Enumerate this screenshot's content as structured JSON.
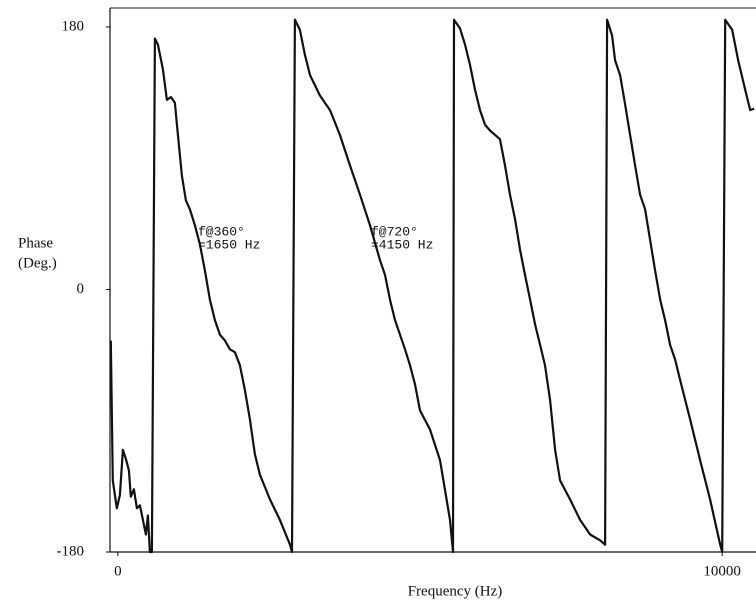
{
  "chart_data": {
    "type": "line",
    "xlabel": "Frequency (Hz)",
    "ylabel": [
      "Phase",
      "(Deg.)"
    ],
    "annotations": [
      [
        "f@360°",
        "=1650 Hz"
      ],
      [
        "f@720°",
        "=4150 Hz"
      ]
    ],
    "x": [
      -116,
      -83,
      -17,
      33,
      83,
      132,
      182,
      215,
      265,
      315,
      364,
      414,
      464,
      497,
      530,
      563,
      613,
      662,
      745,
      811,
      877,
      944,
      993,
      1060,
      1126,
      1192,
      1275,
      1358,
      1440,
      1523,
      1606,
      1689,
      1772,
      1854,
      1937,
      2020,
      2103,
      2185,
      2268,
      2351,
      2517,
      2682,
      2848,
      2881,
      2930,
      3013,
      3096,
      3179,
      3344,
      3510,
      3675,
      3841,
      4007,
      4172,
      4338,
      4420,
      4503,
      4586,
      4669,
      4752,
      4834,
      4917,
      5000,
      5165,
      5331,
      5496,
      5546,
      5563,
      5662,
      5745,
      5828,
      5910,
      5993,
      6076,
      6159,
      6242,
      6324,
      6407,
      6490,
      6573,
      6656,
      6738,
      6821,
      6904,
      6987,
      7069,
      7152,
      7235,
      7318,
      7483,
      7649,
      7814,
      7980,
      8063,
      8096,
      8179,
      8228,
      8311,
      8394,
      8477,
      8560,
      8642,
      8725,
      8808,
      8891,
      8974,
      9056,
      9139,
      9222,
      9304,
      9470,
      9635,
      9801,
      9967,
      10000,
      10050,
      10166,
      10265,
      10381,
      10464,
      10530
    ],
    "series": [
      {
        "color": "#111111",
        "values": [
          -35,
          -131,
          -150,
          -141,
          -110,
          -116,
          -124,
          -142,
          -137,
          -150,
          -148,
          -158,
          -168,
          -155,
          -180,
          -180,
          172,
          168,
          151,
          130,
          132,
          128,
          106,
          78,
          61,
          55,
          44,
          31,
          13,
          -7,
          -21,
          -31,
          -35,
          -41,
          -43,
          -52,
          -69,
          -89,
          -113,
          -127,
          -144,
          -158,
          -175,
          -180,
          185,
          178,
          161,
          147,
          133,
          123,
          106,
          85,
          65,
          44,
          20,
          10,
          -7,
          -21,
          -31,
          -41,
          -52,
          -65,
          -83,
          -96,
          -117,
          -158,
          -180,
          185,
          179,
          168,
          154,
          137,
          123,
          113,
          109,
          106,
          103,
          85,
          65,
          48,
          27,
          10,
          -7,
          -24,
          -38,
          -52,
          -76,
          -110,
          -131,
          -144,
          -158,
          -168,
          -172,
          -175,
          185,
          174,
          157,
          147,
          127,
          106,
          85,
          65,
          55,
          34,
          13,
          -7,
          -21,
          -38,
          -48,
          -62,
          -89,
          -117,
          -144,
          -175,
          -180,
          185,
          178,
          157,
          137,
          123,
          124
        ]
      }
    ],
    "xlim": [
      -130,
      10560
    ],
    "xticks": [
      0,
      10000
    ],
    "ylim": [
      -180,
      193
    ],
    "yticks": [
      -180,
      0,
      180
    ]
  }
}
